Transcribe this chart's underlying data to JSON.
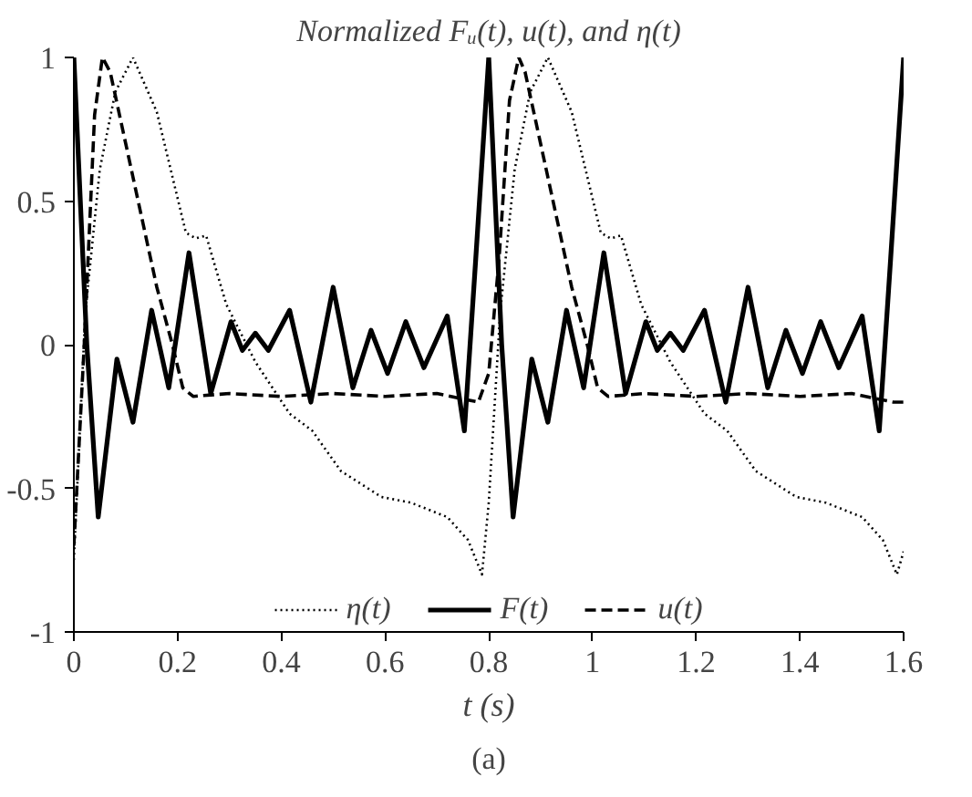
{
  "chart_data": {
    "type": "line",
    "title": "Normalized Fᵤ(t), u(t), and η(t)",
    "xlabel": "t (s)",
    "xlim": [
      0,
      1.6
    ],
    "xticks": [
      0,
      0.2,
      0.4,
      0.6,
      0.8,
      1,
      1.2,
      1.4,
      1.6
    ],
    "ylim": [
      -1,
      1
    ],
    "yticks": [
      -1,
      -0.5,
      0,
      0.5,
      1
    ],
    "grid": false,
    "legend": "bottom",
    "marker": "none",
    "annotations": [
      "(a)"
    ],
    "series": [
      {
        "name": "η(t)",
        "color": "#000000",
        "line_style": "dotted",
        "x": [
          0,
          0.022,
          0.05,
          0.08,
          0.114,
          0.16,
          0.216,
          0.235,
          0.255,
          0.294,
          0.35,
          0.416,
          0.46,
          0.515,
          0.593,
          0.65,
          0.72,
          0.76,
          0.787,
          0.8,
          0.822,
          0.85,
          0.88,
          0.914,
          0.96,
          1.016,
          1.035,
          1.055,
          1.094,
          1.15,
          1.216,
          1.26,
          1.315,
          1.393,
          1.45,
          1.52,
          1.56,
          1.587,
          1.6
        ],
        "values": [
          -0.75,
          0.11,
          0.61,
          0.88,
          1,
          0.81,
          0.39,
          0.37,
          0.38,
          0.14,
          -0.06,
          -0.24,
          -0.3,
          -0.44,
          -0.53,
          -0.55,
          -0.6,
          -0.68,
          -0.8,
          -0.55,
          0.11,
          0.61,
          0.88,
          1,
          0.81,
          0.39,
          0.37,
          0.38,
          0.14,
          -0.06,
          -0.24,
          -0.3,
          -0.44,
          -0.53,
          -0.55,
          -0.6,
          -0.68,
          -0.8,
          -0.72
        ]
      },
      {
        "name": "F(t)",
        "color": "#000000",
        "line_style": "solid",
        "x": [
          0,
          0.025,
          0.047,
          0.083,
          0.114,
          0.15,
          0.183,
          0.222,
          0.264,
          0.303,
          0.325,
          0.35,
          0.375,
          0.416,
          0.457,
          0.5,
          0.538,
          0.573,
          0.605,
          0.64,
          0.675,
          0.72,
          0.753,
          0.775,
          0.8,
          0.825,
          0.847,
          0.883,
          0.914,
          0.95,
          0.983,
          1.022,
          1.064,
          1.103,
          1.125,
          1.15,
          1.175,
          1.216,
          1.257,
          1.3,
          1.338,
          1.373,
          1.405,
          1.44,
          1.475,
          1.52,
          1.553,
          1.575,
          1.6
        ],
        "values": [
          1,
          0,
          -0.6,
          -0.05,
          -0.27,
          0.12,
          -0.15,
          0.32,
          -0.17,
          0.08,
          -0.02,
          0.04,
          -0.02,
          0.12,
          -0.2,
          0.2,
          -0.15,
          0.05,
          -0.1,
          0.08,
          -0.08,
          0.1,
          -0.3,
          0.3,
          1,
          0,
          -0.6,
          -0.05,
          -0.27,
          0.12,
          -0.15,
          0.32,
          -0.17,
          0.08,
          -0.02,
          0.04,
          -0.02,
          0.12,
          -0.2,
          0.2,
          -0.15,
          0.05,
          -0.1,
          0.08,
          -0.08,
          0.1,
          -0.3,
          0.3,
          1
        ]
      },
      {
        "name": "u(t)",
        "color": "#000000",
        "line_style": "dashed",
        "x": [
          0,
          0.02,
          0.04,
          0.055,
          0.07,
          0.1,
          0.13,
          0.16,
          0.19,
          0.21,
          0.23,
          0.3,
          0.4,
          0.5,
          0.6,
          0.7,
          0.78,
          0.8,
          0.82,
          0.84,
          0.858,
          0.87,
          0.9,
          0.93,
          0.96,
          0.99,
          1.01,
          1.03,
          1.1,
          1.2,
          1.3,
          1.4,
          1.5,
          1.58,
          1.6
        ],
        "values": [
          -0.7,
          0,
          0.8,
          1,
          0.95,
          0.7,
          0.45,
          0.2,
          0,
          -0.15,
          -0.18,
          -0.17,
          -0.18,
          -0.17,
          -0.18,
          -0.17,
          -0.2,
          -0.1,
          0.3,
          0.85,
          1,
          0.95,
          0.7,
          0.45,
          0.2,
          0,
          -0.15,
          -0.18,
          -0.17,
          -0.18,
          -0.17,
          -0.18,
          -0.17,
          -0.2,
          -0.2
        ]
      }
    ]
  }
}
